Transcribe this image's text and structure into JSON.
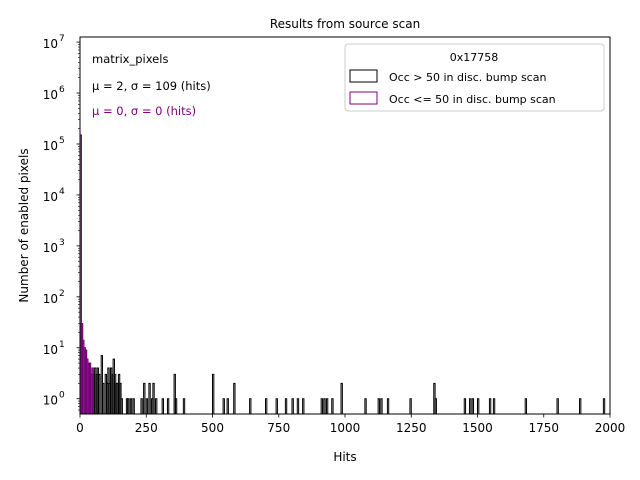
{
  "chart_data": {
    "type": "histogram",
    "title": "Results from source scan",
    "xlabel": "Hits",
    "ylabel": "Number of enabled pixels",
    "xlim": [
      0,
      2000
    ],
    "ylim_log10": [
      -0.3,
      7.1
    ],
    "x_ticks": [
      {
        "value": 0,
        "label": "0"
      },
      {
        "value": 250,
        "label": "250"
      },
      {
        "value": 500,
        "label": "500"
      },
      {
        "value": 750,
        "label": "750"
      },
      {
        "value": 1000,
        "label": "1000"
      },
      {
        "value": 1250,
        "label": "1250"
      },
      {
        "value": 1500,
        "label": "1500"
      },
      {
        "value": 1750,
        "label": "1750"
      },
      {
        "value": 2000,
        "label": "2000"
      }
    ],
    "y_ticks": [
      {
        "exp": 0,
        "base": "10",
        "sup": "0"
      },
      {
        "exp": 1,
        "base": "10",
        "sup": "1"
      },
      {
        "exp": 2,
        "base": "10",
        "sup": "2"
      },
      {
        "exp": 3,
        "base": "10",
        "sup": "3"
      },
      {
        "exp": 4,
        "base": "10",
        "sup": "4"
      },
      {
        "exp": 5,
        "base": "10",
        "sup": "5"
      },
      {
        "exp": 6,
        "base": "10",
        "sup": "6"
      },
      {
        "exp": 7,
        "base": "10",
        "sup": "7"
      }
    ],
    "bin_width": 5,
    "annotations": [
      {
        "text": "matrix_pixels",
        "color": "#000000"
      },
      {
        "text": "μ = 2, σ = 109 (hits)",
        "color": "#000000"
      },
      {
        "text": "μ = 0, σ = 0 (hits)",
        "color": "#800080"
      }
    ],
    "legend": {
      "title": "0x17758",
      "placement": "top-right"
    },
    "series": [
      {
        "name": "Occ > 50 in disc. bump scan",
        "color": "#000000",
        "bins": [
          [
            0,
            150000
          ],
          [
            5,
            30
          ],
          [
            10,
            14
          ],
          [
            15,
            10
          ],
          [
            20,
            9
          ],
          [
            25,
            6
          ],
          [
            30,
            5
          ],
          [
            35,
            5
          ],
          [
            40,
            3
          ],
          [
            45,
            4
          ],
          [
            50,
            3
          ],
          [
            55,
            4
          ],
          [
            60,
            3
          ],
          [
            65,
            4
          ],
          [
            70,
            3
          ],
          [
            80,
            7
          ],
          [
            85,
            2
          ],
          [
            95,
            3
          ],
          [
            100,
            2
          ],
          [
            105,
            4
          ],
          [
            110,
            2
          ],
          [
            115,
            4
          ],
          [
            120,
            3
          ],
          [
            125,
            6
          ],
          [
            130,
            3
          ],
          [
            135,
            2
          ],
          [
            140,
            2
          ],
          [
            145,
            3
          ],
          [
            150,
            2
          ],
          [
            155,
            1
          ],
          [
            175,
            1
          ],
          [
            180,
            1
          ],
          [
            190,
            1
          ],
          [
            200,
            1
          ],
          [
            230,
            1
          ],
          [
            240,
            2
          ],
          [
            250,
            1
          ],
          [
            260,
            2
          ],
          [
            270,
            1
          ],
          [
            275,
            2
          ],
          [
            285,
            1
          ],
          [
            310,
            1
          ],
          [
            330,
            1
          ],
          [
            355,
            3
          ],
          [
            360,
            1
          ],
          [
            390,
            1
          ],
          [
            500,
            3
          ],
          [
            540,
            1
          ],
          [
            555,
            1
          ],
          [
            580,
            2
          ],
          [
            640,
            1
          ],
          [
            700,
            1
          ],
          [
            740,
            1
          ],
          [
            775,
            1
          ],
          [
            800,
            1
          ],
          [
            820,
            1
          ],
          [
            840,
            1
          ],
          [
            910,
            1
          ],
          [
            920,
            1
          ],
          [
            930,
            1
          ],
          [
            950,
            1
          ],
          [
            985,
            2
          ],
          [
            1075,
            1
          ],
          [
            1125,
            1
          ],
          [
            1135,
            1
          ],
          [
            1160,
            1
          ],
          [
            1245,
            1
          ],
          [
            1335,
            2
          ],
          [
            1340,
            1
          ],
          [
            1450,
            1
          ],
          [
            1470,
            1
          ],
          [
            1480,
            1
          ],
          [
            1500,
            1
          ],
          [
            1545,
            1
          ],
          [
            1560,
            1
          ],
          [
            1680,
            1
          ],
          [
            1800,
            1
          ],
          [
            1885,
            1
          ],
          [
            1975,
            1
          ]
        ]
      },
      {
        "name": "Occ <= 50 in disc. bump scan",
        "color": "#800080",
        "bins": [
          [
            0,
            150000
          ],
          [
            5,
            30
          ],
          [
            10,
            14
          ],
          [
            15,
            10
          ],
          [
            20,
            9
          ],
          [
            25,
            6
          ],
          [
            30,
            5
          ],
          [
            35,
            5
          ],
          [
            40,
            3
          ],
          [
            45,
            4
          ]
        ]
      }
    ]
  }
}
